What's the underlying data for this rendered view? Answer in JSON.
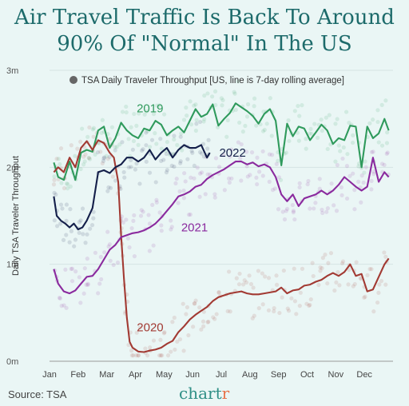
{
  "title": "Air Travel Traffic Is Back To Around\n90% Of \"Normal\" In The US",
  "source": "Source: TSA",
  "brand": {
    "main": "chart",
    "accent": "r"
  },
  "colors": {
    "background": "#eaf6f5",
    "2019": "#2f9a5c",
    "2020": "#a23a33",
    "2021": "#8a2a9e",
    "2022": "#141f4a",
    "legend_dot": "#666666"
  },
  "chart_data": {
    "type": "line",
    "title": "Air Travel Traffic Is Back To Around 90% Of \"Normal\" In The US",
    "ylabel": "Daily TSA Traveler Throughput",
    "xlabel": "",
    "legend": "● TSA Daily Traveler Throughput [US, line is 7-day rolling average]",
    "ylim": [
      0,
      3000000
    ],
    "yticks": [
      0,
      1000000,
      2000000,
      3000000
    ],
    "ytick_labels": [
      "0m",
      "1m",
      "2m",
      "3m"
    ],
    "months": [
      "Jan",
      "Feb",
      "Mar",
      "Apr",
      "May",
      "Jun",
      "Jul",
      "Aug",
      "Sep",
      "Oct",
      "Nov",
      "Dec"
    ],
    "x_unit": "month of year (fractional)",
    "series": [
      {
        "name": "2019",
        "label": "2019",
        "x": [
          0.15,
          0.3,
          0.5,
          0.7,
          0.9,
          1.1,
          1.3,
          1.5,
          1.7,
          1.9,
          2.1,
          2.3,
          2.5,
          2.7,
          2.9,
          3.1,
          3.3,
          3.5,
          3.7,
          3.9,
          4.1,
          4.3,
          4.5,
          4.7,
          4.9,
          5.1,
          5.3,
          5.5,
          5.7,
          5.9,
          6.1,
          6.3,
          6.5,
          6.7,
          6.9,
          7.1,
          7.3,
          7.5,
          7.7,
          7.9,
          8.1,
          8.3,
          8.5,
          8.7,
          8.9,
          9.1,
          9.3,
          9.5,
          9.7,
          9.9,
          10.1,
          10.3,
          10.5,
          10.7,
          10.9,
          11.1,
          11.3,
          11.5,
          11.7,
          11.85
        ],
        "values": [
          2050000,
          1900000,
          1870000,
          2060000,
          1870000,
          2150000,
          2180000,
          2160000,
          2380000,
          2420000,
          2200000,
          2300000,
          2460000,
          2380000,
          2330000,
          2300000,
          2400000,
          2380000,
          2480000,
          2440000,
          2330000,
          2380000,
          2420000,
          2360000,
          2480000,
          2600000,
          2520000,
          2550000,
          2650000,
          2430000,
          2500000,
          2560000,
          2660000,
          2620000,
          2580000,
          2530000,
          2450000,
          2550000,
          2600000,
          2480000,
          2020000,
          2450000,
          2320000,
          2420000,
          2400000,
          2280000,
          2360000,
          2440000,
          2380000,
          2240000,
          2300000,
          2280000,
          2430000,
          2420000,
          2000000,
          2420000,
          2300000,
          2350000,
          2500000,
          2380000
        ]
      },
      {
        "name": "2020",
        "label": "2020",
        "x": [
          0.15,
          0.3,
          0.5,
          0.7,
          0.9,
          1.1,
          1.3,
          1.5,
          1.7,
          1.9,
          2.1,
          2.25,
          2.4,
          2.5,
          2.6,
          2.7,
          2.8,
          2.9,
          3.1,
          3.3,
          3.5,
          3.7,
          3.9,
          4.1,
          4.3,
          4.5,
          4.7,
          4.9,
          5.1,
          5.3,
          5.5,
          5.7,
          5.9,
          6.1,
          6.3,
          6.5,
          6.7,
          6.9,
          7.1,
          7.3,
          7.5,
          7.7,
          7.9,
          8.1,
          8.3,
          8.5,
          8.7,
          8.9,
          9.1,
          9.3,
          9.5,
          9.7,
          9.9,
          10.1,
          10.3,
          10.5,
          10.7,
          10.9,
          11.1,
          11.3,
          11.5,
          11.7,
          11.85
        ],
        "values": [
          1950000,
          2000000,
          1950000,
          2100000,
          2000000,
          2200000,
          2270000,
          2180000,
          2280000,
          2250000,
          2150000,
          2100000,
          1850000,
          1300000,
          850000,
          450000,
          200000,
          140000,
          100000,
          95000,
          110000,
          120000,
          140000,
          180000,
          210000,
          300000,
          360000,
          430000,
          480000,
          520000,
          560000,
          620000,
          660000,
          680000,
          700000,
          710000,
          720000,
          700000,
          690000,
          690000,
          700000,
          710000,
          720000,
          760000,
          700000,
          730000,
          740000,
          780000,
          790000,
          820000,
          840000,
          880000,
          910000,
          880000,
          920000,
          1000000,
          880000,
          900000,
          720000,
          740000,
          870000,
          1000000,
          1060000
        ]
      },
      {
        "name": "2021",
        "label": "2021",
        "x": [
          0.15,
          0.3,
          0.5,
          0.7,
          0.9,
          1.1,
          1.3,
          1.5,
          1.7,
          1.9,
          2.1,
          2.3,
          2.5,
          2.7,
          2.9,
          3.1,
          3.3,
          3.5,
          3.7,
          3.9,
          4.1,
          4.3,
          4.5,
          4.7,
          4.9,
          5.1,
          5.3,
          5.5,
          5.7,
          5.9,
          6.1,
          6.3,
          6.5,
          6.7,
          6.9,
          7.1,
          7.3,
          7.5,
          7.7,
          7.9,
          8.1,
          8.3,
          8.5,
          8.7,
          8.9,
          9.1,
          9.3,
          9.5,
          9.7,
          9.9,
          10.1,
          10.3,
          10.5,
          10.7,
          10.9,
          11.1,
          11.3,
          11.5,
          11.7,
          11.85
        ],
        "values": [
          950000,
          800000,
          720000,
          700000,
          730000,
          800000,
          870000,
          880000,
          950000,
          1050000,
          1150000,
          1200000,
          1280000,
          1300000,
          1320000,
          1330000,
          1350000,
          1380000,
          1420000,
          1480000,
          1550000,
          1620000,
          1700000,
          1720000,
          1750000,
          1800000,
          1820000,
          1880000,
          1920000,
          1950000,
          1980000,
          2020000,
          2060000,
          2060000,
          2030000,
          2050000,
          2010000,
          2030000,
          2000000,
          1900000,
          1720000,
          1650000,
          1720000,
          1600000,
          1680000,
          1700000,
          1720000,
          1760000,
          1720000,
          1760000,
          1820000,
          1900000,
          1850000,
          1800000,
          1760000,
          1800000,
          2100000,
          1850000,
          1950000,
          1900000
        ]
      },
      {
        "name": "2022",
        "label": "2022",
        "x": [
          0.15,
          0.25,
          0.4,
          0.55,
          0.7,
          0.85,
          1.0,
          1.15,
          1.3,
          1.5,
          1.7,
          1.9,
          2.1,
          2.3,
          2.5,
          2.7,
          2.9,
          3.1,
          3.3,
          3.5,
          3.7,
          3.9,
          4.1,
          4.3,
          4.5,
          4.7,
          4.9,
          5.1,
          5.3,
          5.5,
          5.6
        ],
        "values": [
          1700000,
          1500000,
          1450000,
          1420000,
          1380000,
          1420000,
          1360000,
          1380000,
          1450000,
          1580000,
          1950000,
          1970000,
          1940000,
          2000000,
          2030000,
          2100000,
          2100000,
          2060000,
          2100000,
          2180000,
          2080000,
          2150000,
          2200000,
          2100000,
          2180000,
          2230000,
          2200000,
          2200000,
          2230000,
          2100000,
          2150000
        ]
      }
    ]
  }
}
